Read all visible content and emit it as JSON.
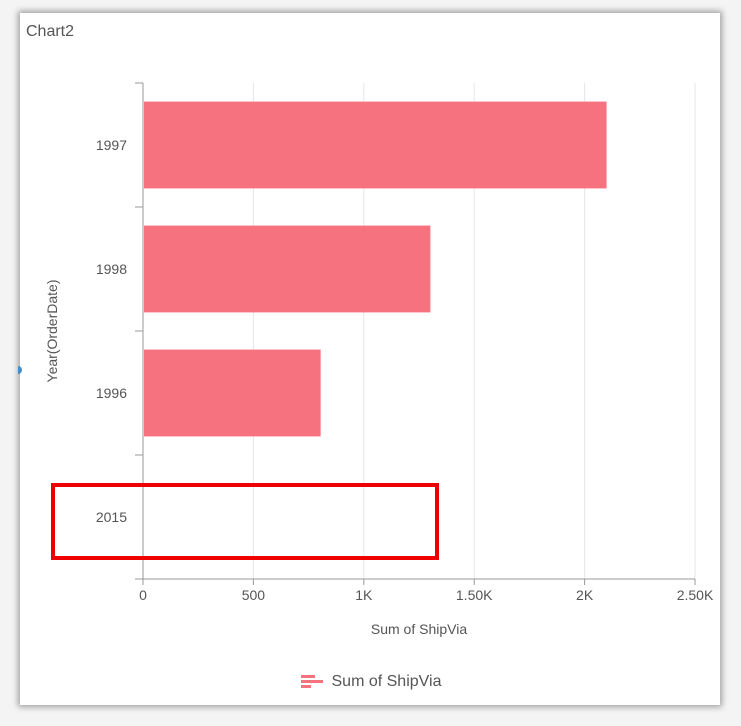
{
  "widget_title": "Chart2",
  "colors": {
    "bar": "#f7727f",
    "highlight": "#ee0000"
  },
  "chart_data": {
    "type": "bar",
    "orientation": "horizontal",
    "categories": [
      "1997",
      "1998",
      "1996",
      "2015"
    ],
    "series": [
      {
        "name": "Sum of ShipVia",
        "values": [
          2095,
          1297,
          800,
          0
        ]
      }
    ],
    "xlabel": "Sum of ShipVia",
    "ylabel": "Year(OrderDate)",
    "xlim": [
      0,
      2500
    ],
    "xticks": [
      0,
      500,
      1000,
      1500,
      2000,
      2500
    ],
    "xtick_labels": [
      "0",
      "500",
      "1K",
      "1.50K",
      "2K",
      "2.50K"
    ],
    "grid": true,
    "legend_position": "bottom"
  },
  "annotation": {
    "type": "highlight-box",
    "category": "2015"
  }
}
